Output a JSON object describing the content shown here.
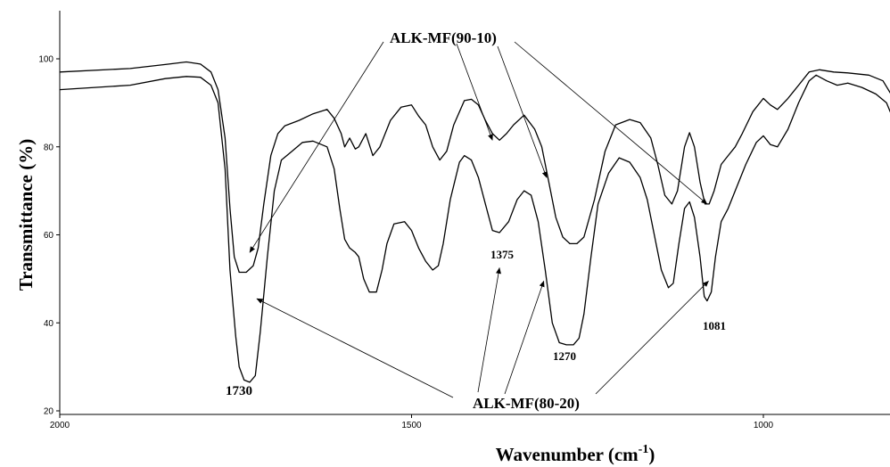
{
  "chart_data": {
    "type": "line",
    "xlabel": "Wavenumber (cm",
    "xlabel_superscript": "-1",
    "xlabel_close": ")",
    "ylabel": "Transmittance (%)",
    "xlim": [
      2000,
      800
    ],
    "ylim": [
      19,
      111
    ],
    "x_reversed": true,
    "x_ticks": [
      2000,
      1500,
      1000
    ],
    "y_ticks": [
      20,
      40,
      60,
      80,
      100
    ],
    "grid": false,
    "series": [
      {
        "name": "ALK-MF(90-10)",
        "points": [
          [
            2000,
            97
          ],
          [
            1900,
            97.8
          ],
          [
            1850,
            98.7
          ],
          [
            1820,
            99.3
          ],
          [
            1800,
            98.8
          ],
          [
            1785,
            97
          ],
          [
            1775,
            93
          ],
          [
            1765,
            82
          ],
          [
            1758,
            66
          ],
          [
            1752,
            55
          ],
          [
            1745,
            51.5
          ],
          [
            1735,
            51.5
          ],
          [
            1725,
            53
          ],
          [
            1718,
            57
          ],
          [
            1710,
            67
          ],
          [
            1700,
            78
          ],
          [
            1690,
            83
          ],
          [
            1680,
            84.8
          ],
          [
            1660,
            86
          ],
          [
            1640,
            87.5
          ],
          [
            1620,
            88.5
          ],
          [
            1610,
            86.5
          ],
          [
            1600,
            83
          ],
          [
            1595,
            80
          ],
          [
            1588,
            82
          ],
          [
            1580,
            79.5
          ],
          [
            1575,
            80
          ],
          [
            1565,
            83
          ],
          [
            1555,
            78
          ],
          [
            1545,
            80
          ],
          [
            1530,
            86
          ],
          [
            1515,
            89
          ],
          [
            1500,
            89.5
          ],
          [
            1490,
            87
          ],
          [
            1480,
            85
          ],
          [
            1470,
            80
          ],
          [
            1460,
            77
          ],
          [
            1450,
            79
          ],
          [
            1440,
            85
          ],
          [
            1425,
            90.5
          ],
          [
            1415,
            90.8
          ],
          [
            1405,
            89.5
          ],
          [
            1395,
            86
          ],
          [
            1385,
            83
          ],
          [
            1375,
            81.5
          ],
          [
            1365,
            83
          ],
          [
            1355,
            85
          ],
          [
            1340,
            87.2
          ],
          [
            1325,
            84
          ],
          [
            1315,
            80
          ],
          [
            1305,
            72
          ],
          [
            1295,
            64
          ],
          [
            1285,
            59.5
          ],
          [
            1275,
            58
          ],
          [
            1265,
            58
          ],
          [
            1255,
            59.5
          ],
          [
            1240,
            68
          ],
          [
            1225,
            79
          ],
          [
            1210,
            85
          ],
          [
            1190,
            86.2
          ],
          [
            1175,
            85.5
          ],
          [
            1160,
            82
          ],
          [
            1150,
            76
          ],
          [
            1140,
            69
          ],
          [
            1130,
            67
          ],
          [
            1122,
            70
          ],
          [
            1112,
            80
          ],
          [
            1105,
            83.2
          ],
          [
            1098,
            80
          ],
          [
            1090,
            72
          ],
          [
            1083,
            67
          ],
          [
            1077,
            67
          ],
          [
            1070,
            70
          ],
          [
            1060,
            76
          ],
          [
            1050,
            78
          ],
          [
            1040,
            80
          ],
          [
            1030,
            83
          ],
          [
            1015,
            88
          ],
          [
            1000,
            91
          ],
          [
            990,
            89.5
          ],
          [
            980,
            88.5
          ],
          [
            965,
            91
          ],
          [
            950,
            94
          ],
          [
            935,
            97
          ],
          [
            920,
            97.5
          ],
          [
            900,
            97
          ],
          [
            880,
            96.8
          ],
          [
            850,
            96.3
          ],
          [
            830,
            95
          ],
          [
            815,
            91
          ],
          [
            805,
            88
          ],
          [
            800,
            86
          ]
        ]
      },
      {
        "name": "ALK-MF(80-20)",
        "points": [
          [
            2000,
            93
          ],
          [
            1900,
            94
          ],
          [
            1850,
            95.5
          ],
          [
            1820,
            96
          ],
          [
            1800,
            95.8
          ],
          [
            1785,
            94
          ],
          [
            1775,
            90
          ],
          [
            1765,
            75
          ],
          [
            1758,
            52
          ],
          [
            1750,
            37
          ],
          [
            1745,
            30
          ],
          [
            1738,
            27
          ],
          [
            1730,
            26.5
          ],
          [
            1722,
            28
          ],
          [
            1715,
            38
          ],
          [
            1705,
            55
          ],
          [
            1695,
            70
          ],
          [
            1685,
            77
          ],
          [
            1670,
            79
          ],
          [
            1655,
            81
          ],
          [
            1640,
            81.3
          ],
          [
            1620,
            80
          ],
          [
            1610,
            75
          ],
          [
            1602,
            66
          ],
          [
            1595,
            59
          ],
          [
            1588,
            57
          ],
          [
            1580,
            56
          ],
          [
            1575,
            55
          ],
          [
            1568,
            50
          ],
          [
            1560,
            47
          ],
          [
            1550,
            47
          ],
          [
            1542,
            52
          ],
          [
            1535,
            58
          ],
          [
            1525,
            62.5
          ],
          [
            1510,
            63
          ],
          [
            1500,
            61
          ],
          [
            1490,
            57
          ],
          [
            1480,
            54
          ],
          [
            1470,
            52
          ],
          [
            1462,
            53
          ],
          [
            1455,
            58
          ],
          [
            1445,
            68
          ],
          [
            1432,
            76.5
          ],
          [
            1425,
            78
          ],
          [
            1415,
            77
          ],
          [
            1405,
            73
          ],
          [
            1395,
            67
          ],
          [
            1385,
            61
          ],
          [
            1375,
            60.5
          ],
          [
            1362,
            63
          ],
          [
            1350,
            68
          ],
          [
            1340,
            70
          ],
          [
            1330,
            69
          ],
          [
            1320,
            63
          ],
          [
            1310,
            52
          ],
          [
            1300,
            40
          ],
          [
            1290,
            35.5
          ],
          [
            1280,
            35
          ],
          [
            1270,
            35
          ],
          [
            1262,
            36.5
          ],
          [
            1255,
            42
          ],
          [
            1245,
            55
          ],
          [
            1235,
            67
          ],
          [
            1220,
            74
          ],
          [
            1205,
            77.5
          ],
          [
            1190,
            76.5
          ],
          [
            1175,
            73
          ],
          [
            1165,
            68
          ],
          [
            1155,
            60
          ],
          [
            1145,
            52
          ],
          [
            1135,
            48
          ],
          [
            1128,
            49
          ],
          [
            1120,
            58
          ],
          [
            1112,
            66
          ],
          [
            1105,
            67.5
          ],
          [
            1098,
            64
          ],
          [
            1090,
            55
          ],
          [
            1084,
            46
          ],
          [
            1080,
            45
          ],
          [
            1074,
            47
          ],
          [
            1068,
            55
          ],
          [
            1060,
            63
          ],
          [
            1050,
            66
          ],
          [
            1040,
            70
          ],
          [
            1025,
            76
          ],
          [
            1010,
            81
          ],
          [
            1000,
            82.5
          ],
          [
            990,
            80.5
          ],
          [
            980,
            80
          ],
          [
            965,
            84
          ],
          [
            950,
            90
          ],
          [
            935,
            95
          ],
          [
            925,
            96.3
          ],
          [
            910,
            95
          ],
          [
            895,
            94
          ],
          [
            880,
            94.5
          ],
          [
            860,
            93.5
          ],
          [
            840,
            92
          ],
          [
            825,
            90
          ],
          [
            812,
            85
          ],
          [
            800,
            74
          ]
        ]
      }
    ],
    "annotations": {
      "top_label": "ALK-MF(90-10)",
      "bottom_label": "ALK-MF(80-20)",
      "peaks": [
        "1730",
        "1375",
        "1270",
        "1081"
      ]
    }
  }
}
